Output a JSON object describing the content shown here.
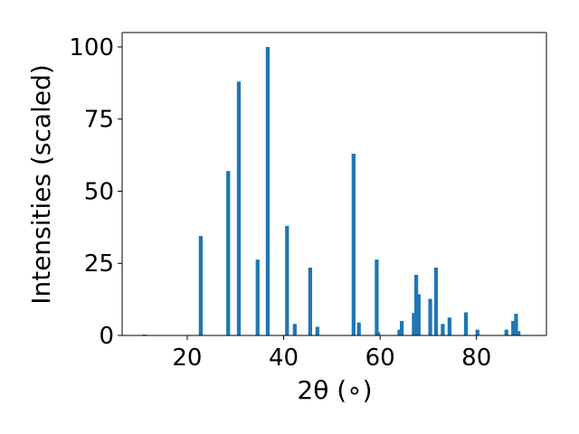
{
  "chart_data": {
    "type": "bar",
    "xlabel": "2θ (∘)",
    "ylabel": "Intensities (scaled)",
    "xlim": [
      6.5,
      94.5
    ],
    "ylim": [
      0,
      105
    ],
    "xticks": [
      20,
      40,
      60,
      80
    ],
    "yticks": [
      0,
      25,
      50,
      75,
      100
    ],
    "grid": false,
    "bar_color": "#1f77b4",
    "bar_width": 0.8,
    "bars": [
      {
        "x": 11.1,
        "y": 0.3
      },
      {
        "x": 22.8,
        "y": 34.5
      },
      {
        "x": 28.5,
        "y": 57
      },
      {
        "x": 30.7,
        "y": 88
      },
      {
        "x": 34.6,
        "y": 26.3
      },
      {
        "x": 36.7,
        "y": 100
      },
      {
        "x": 40.7,
        "y": 38
      },
      {
        "x": 42.3,
        "y": 4
      },
      {
        "x": 45.5,
        "y": 23.5
      },
      {
        "x": 47.0,
        "y": 3
      },
      {
        "x": 54.5,
        "y": 63
      },
      {
        "x": 55.6,
        "y": 4.5
      },
      {
        "x": 59.3,
        "y": 26.3
      },
      {
        "x": 59.6,
        "y": 1.2
      },
      {
        "x": 64.0,
        "y": 2
      },
      {
        "x": 64.5,
        "y": 5
      },
      {
        "x": 67.0,
        "y": 7.8
      },
      {
        "x": 67.5,
        "y": 21
      },
      {
        "x": 68.0,
        "y": 14.3
      },
      {
        "x": 70.4,
        "y": 12.7
      },
      {
        "x": 71.6,
        "y": 23.5
      },
      {
        "x": 73.0,
        "y": 4
      },
      {
        "x": 74.4,
        "y": 6.2
      },
      {
        "x": 77.8,
        "y": 8
      },
      {
        "x": 80.2,
        "y": 2
      },
      {
        "x": 86.2,
        "y": 2
      },
      {
        "x": 87.6,
        "y": 5
      },
      {
        "x": 88.2,
        "y": 7.5
      },
      {
        "x": 88.7,
        "y": 1.5
      }
    ]
  }
}
